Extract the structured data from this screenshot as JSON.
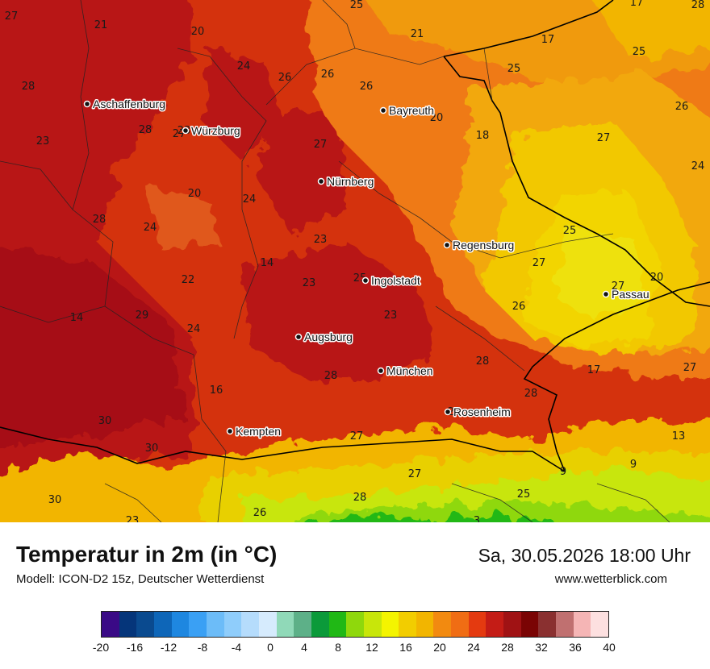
{
  "map": {
    "cities": [
      {
        "name": "Aschaffenburg"
      },
      {
        "name": "Würzburg"
      },
      {
        "name": "Bayreuth"
      },
      {
        "name": "Nürnberg"
      },
      {
        "name": "Regensburg"
      },
      {
        "name": "Ingolstadt"
      },
      {
        "name": "Passau"
      },
      {
        "name": "Augsburg"
      },
      {
        "name": "München"
      },
      {
        "name": "Rosenheim"
      },
      {
        "name": "Kempten"
      }
    ],
    "values": [
      "27",
      "21",
      "20",
      "25",
      "17",
      "28",
      "23",
      "24",
      "26",
      "26",
      "21",
      "17",
      "25",
      "20",
      "25",
      "26",
      "28",
      "23",
      "27",
      "20",
      "18",
      "27",
      "26",
      "28",
      "24",
      "24",
      "23",
      "25",
      "14",
      "27",
      "22",
      "23",
      "27",
      "20",
      "14",
      "29",
      "23",
      "26",
      "17",
      "16",
      "28",
      "30",
      "27",
      "28",
      "28",
      "27",
      "30",
      "13",
      "9",
      "9",
      "27",
      "25",
      "30",
      "26",
      "28",
      "25",
      "3",
      "23",
      "28",
      "28",
      "24",
      "24",
      "27"
    ]
  },
  "footer": {
    "title": "Temperatur in 2m (in °C)",
    "model": "Modell: ICON-D2 15z, Deutscher Wetterdienst",
    "datetime": "Sa, 30.05.2026 18:00 Uhr",
    "site": "www.wetterblick.com"
  },
  "legend": {
    "colors": [
      "#3a0a86",
      "#05357a",
      "#0a4a8f",
      "#0e66b8",
      "#1e87e0",
      "#3aa0f4",
      "#6cbcf8",
      "#8fcdfb",
      "#b5dcfc",
      "#d6ebfd",
      "#90d9b8",
      "#5db088",
      "#0b9a3a",
      "#20b815",
      "#8fd80c",
      "#c8e60a",
      "#f4f400",
      "#f2cd00",
      "#f2b500",
      "#f28a10",
      "#f06d14",
      "#e43a10",
      "#c41c16",
      "#a01214",
      "#7a0404",
      "#8a3030",
      "#c07070",
      "#f5b5b5",
      "#fde0e0"
    ],
    "ticks": [
      "-20",
      "-16",
      "-12",
      "-8",
      "-4",
      "0",
      "4",
      "8",
      "12",
      "16",
      "20",
      "24",
      "28",
      "32",
      "36",
      "40"
    ]
  }
}
